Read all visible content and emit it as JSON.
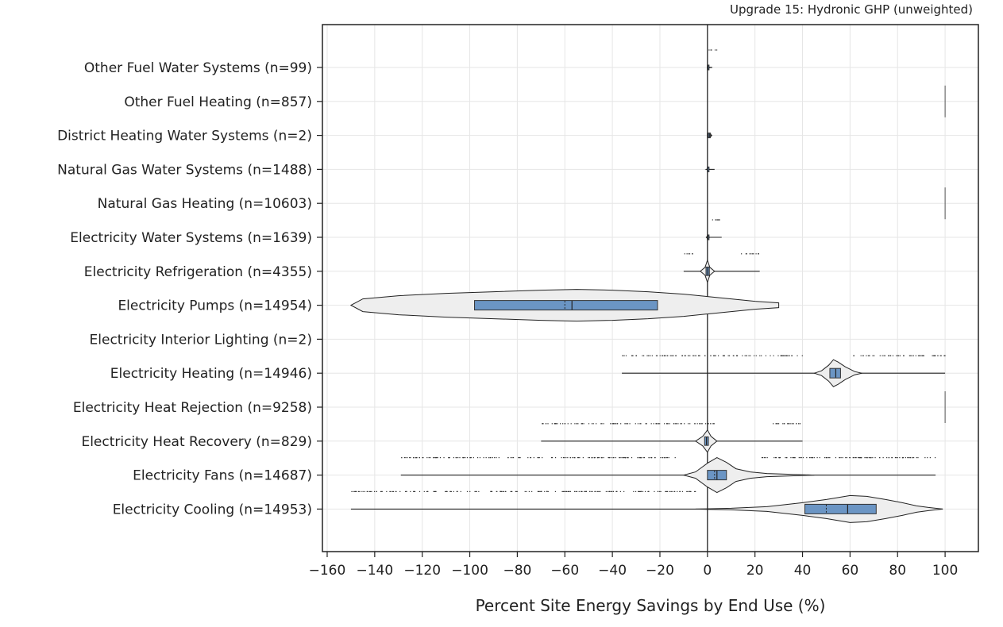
{
  "chart_data": {
    "type": "violin",
    "title": "Upgrade 15: Hydronic GHP (unweighted)",
    "xlabel": "Percent Site Energy Savings by End Use (%)",
    "ylabel": "",
    "xlim": [
      -162,
      114
    ],
    "x_ticks": [
      -160,
      -140,
      -120,
      -100,
      -80,
      -60,
      -40,
      -20,
      0,
      20,
      40,
      60,
      80,
      100
    ],
    "grid": true,
    "colors": {
      "box": "#6b95c4",
      "violin": "#eeeeee",
      "outline": "#222222",
      "grid": "#e6e6e6"
    },
    "categories": [
      {
        "label": "Other Fuel Water Systems  (n=99)",
        "violin": [
          [
            0,
            0.2
          ],
          [
            0.5,
            0.5
          ],
          [
            1,
            0.3
          ],
          [
            2,
            0
          ]
        ],
        "box": [
          0,
          0.5
        ],
        "median": 0.2,
        "whisker": [
          0,
          2
        ],
        "outliers": [
          {
            "from": 0.5,
            "to": 4
          }
        ]
      },
      {
        "label": "Other Fuel Heating  (n=857)",
        "violin": [],
        "box": null,
        "median": null,
        "whisker": null,
        "outliers": [
          {
            "from": 100,
            "to": 100
          }
        ]
      },
      {
        "label": "District Heating Water Systems  (n=2)",
        "violin": [
          [
            0,
            1.5
          ],
          [
            0.5,
            2.2
          ],
          [
            1.5,
            1.5
          ]
        ],
        "box": [
          0.3,
          1.2
        ],
        "median": 0.8,
        "whisker": [
          0,
          2
        ],
        "outliers": []
      },
      {
        "label": "Natural Gas Water Systems  (n=1488)",
        "violin": [
          [
            -0.5,
            0
          ],
          [
            0,
            0.4
          ],
          [
            1,
            0
          ]
        ],
        "box": [
          0,
          0.3
        ],
        "median": 0.1,
        "whisker": [
          -0.5,
          3
        ],
        "outliers": []
      },
      {
        "label": "Natural Gas Heating  (n=10603)",
        "violin": [],
        "box": null,
        "median": null,
        "whisker": null,
        "outliers": [
          {
            "from": 100,
            "to": 100
          }
        ]
      },
      {
        "label": "Electricity Water Systems  (n=1639)",
        "violin": [
          [
            -0.5,
            0
          ],
          [
            0,
            1.5
          ],
          [
            1,
            0
          ]
        ],
        "box": [
          0,
          0.5
        ],
        "median": 0.2,
        "whisker": [
          -0.5,
          6
        ],
        "outliers": [
          {
            "from": 0,
            "to": 6
          }
        ]
      },
      {
        "label": "Electricity Refrigeration  (n=4355)",
        "violin": [
          [
            -3,
            0
          ],
          [
            -1,
            5
          ],
          [
            0,
            14
          ],
          [
            1,
            5
          ],
          [
            3,
            0
          ]
        ],
        "box": [
          -0.6,
          0.8
        ],
        "median": 0.1,
        "whisker": [
          -10,
          22
        ],
        "outliers": [
          {
            "from": -10,
            "to": -5
          },
          {
            "from": 13,
            "to": 22
          }
        ]
      },
      {
        "label": "Electricity Pumps  (n=14954)",
        "violin": [
          [
            -150,
            0
          ],
          [
            -145,
            8
          ],
          [
            -130,
            12
          ],
          [
            -110,
            15
          ],
          [
            -90,
            17
          ],
          [
            -70,
            19
          ],
          [
            -55,
            20
          ],
          [
            -40,
            19
          ],
          [
            -25,
            17
          ],
          [
            -10,
            14
          ],
          [
            0,
            11
          ],
          [
            10,
            8
          ],
          [
            20,
            5
          ],
          [
            30,
            3
          ]
        ],
        "box": [
          -98,
          -21
        ],
        "median": -57,
        "mean": -60,
        "whisker": [
          -150,
          30
        ],
        "outliers": []
      },
      {
        "label": "Electricity Interior Lighting  (n=2)",
        "violin": [],
        "box": null,
        "median": null,
        "whisker": null,
        "outliers": []
      },
      {
        "label": "Electricity Heating  (n=14946)",
        "violin": [
          [
            45,
            0
          ],
          [
            48,
            3
          ],
          [
            51,
            10
          ],
          [
            53,
            17
          ],
          [
            55,
            14
          ],
          [
            58,
            8
          ],
          [
            62,
            2
          ],
          [
            65,
            0
          ]
        ],
        "box": [
          51.5,
          56
        ],
        "median": 54,
        "whisker": [
          -36,
          100
        ],
        "outliers": [
          {
            "from": -36,
            "to": 40
          },
          {
            "from": 60,
            "to": 100
          }
        ]
      },
      {
        "label": "Electricity Heat Rejection  (n=9258)",
        "violin": [],
        "box": null,
        "median": null,
        "whisker": null,
        "outliers": [
          {
            "from": 100,
            "to": 100
          }
        ]
      },
      {
        "label": "Electricity Heat Recovery  (n=829)",
        "violin": [
          [
            -5,
            0
          ],
          [
            -2,
            6
          ],
          [
            0,
            14
          ],
          [
            1.5,
            6
          ],
          [
            4,
            0
          ]
        ],
        "box": [
          -1.2,
          0.4
        ],
        "median": -0.4,
        "whisker": [
          -70,
          40
        ],
        "outliers": [
          {
            "from": -70,
            "to": 3
          },
          {
            "from": 26,
            "to": 40
          }
        ]
      },
      {
        "label": "Electricity Fans  (n=14687)",
        "violin": [
          [
            -10,
            0
          ],
          [
            -5,
            4
          ],
          [
            0,
            15
          ],
          [
            4,
            22
          ],
          [
            8,
            16
          ],
          [
            12,
            8
          ],
          [
            18,
            4
          ],
          [
            25,
            2
          ],
          [
            35,
            1
          ],
          [
            45,
            0
          ]
        ],
        "box": [
          0,
          8
        ],
        "median": 4,
        "mean": 3,
        "whisker": [
          -129,
          96
        ],
        "outliers": [
          {
            "from": -129,
            "to": -13
          },
          {
            "from": 21,
            "to": 96
          }
        ]
      },
      {
        "label": "Electricity Cooling  (n=14953)",
        "violin": [
          [
            -5,
            0
          ],
          [
            10,
            1
          ],
          [
            25,
            3
          ],
          [
            40,
            8
          ],
          [
            50,
            12
          ],
          [
            60,
            17
          ],
          [
            67,
            16
          ],
          [
            75,
            12
          ],
          [
            82,
            8
          ],
          [
            88,
            4
          ],
          [
            93,
            2
          ],
          [
            99,
            0
          ]
        ],
        "box": [
          41,
          71
        ],
        "median": 59,
        "mean": 50,
        "whisker": [
          -150,
          99
        ],
        "outliers": [
          {
            "from": -150,
            "to": -5
          }
        ]
      }
    ]
  }
}
